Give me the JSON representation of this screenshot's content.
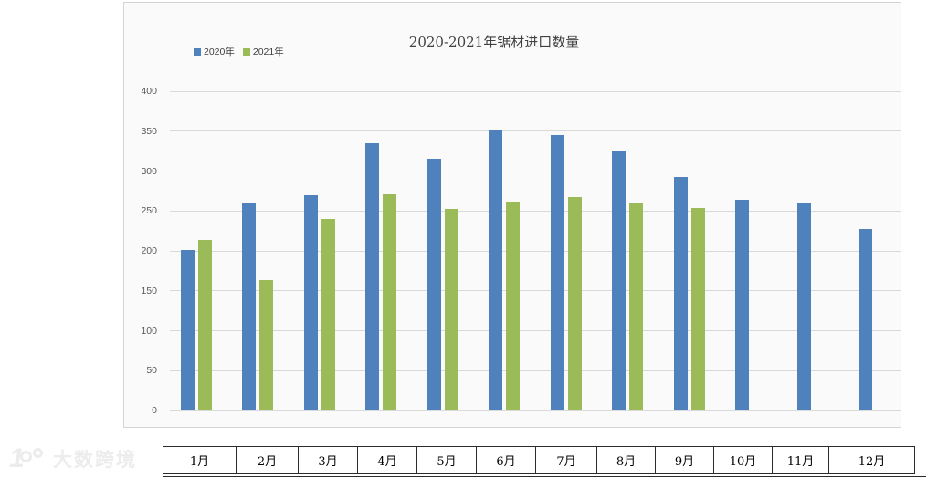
{
  "page": {
    "background": "#ffffff"
  },
  "watermark": {
    "mark": "100-logo",
    "brand": "大数跨境"
  },
  "chart_data": {
    "type": "bar",
    "title": "2020-2021年锯材进口数量",
    "categories": [
      "1月",
      "2月",
      "3月",
      "4月",
      "5月",
      "6月",
      "7月",
      "8月",
      "9月",
      "10月",
      "11月",
      "12月"
    ],
    "series": [
      {
        "name": "2020年",
        "color": "#4f81bd",
        "values": [
          201,
          261,
          270,
          335,
          315,
          351,
          345,
          326,
          293,
          264,
          261,
          228
        ]
      },
      {
        "name": "2021年",
        "color": "#9bbb59",
        "values": [
          214,
          164,
          240,
          271,
          253,
          262,
          268,
          261,
          254,
          null,
          null,
          null
        ]
      }
    ],
    "xlabel": "",
    "ylabel": "",
    "ylim": [
      0,
      400
    ],
    "ytick_step": 50,
    "grid": true,
    "legend_position": "top-left",
    "colors": {
      "grid": "#d9d9d9",
      "axis_text": "#595959",
      "title_text": "#404040",
      "plot_background": "#fafafa"
    }
  }
}
